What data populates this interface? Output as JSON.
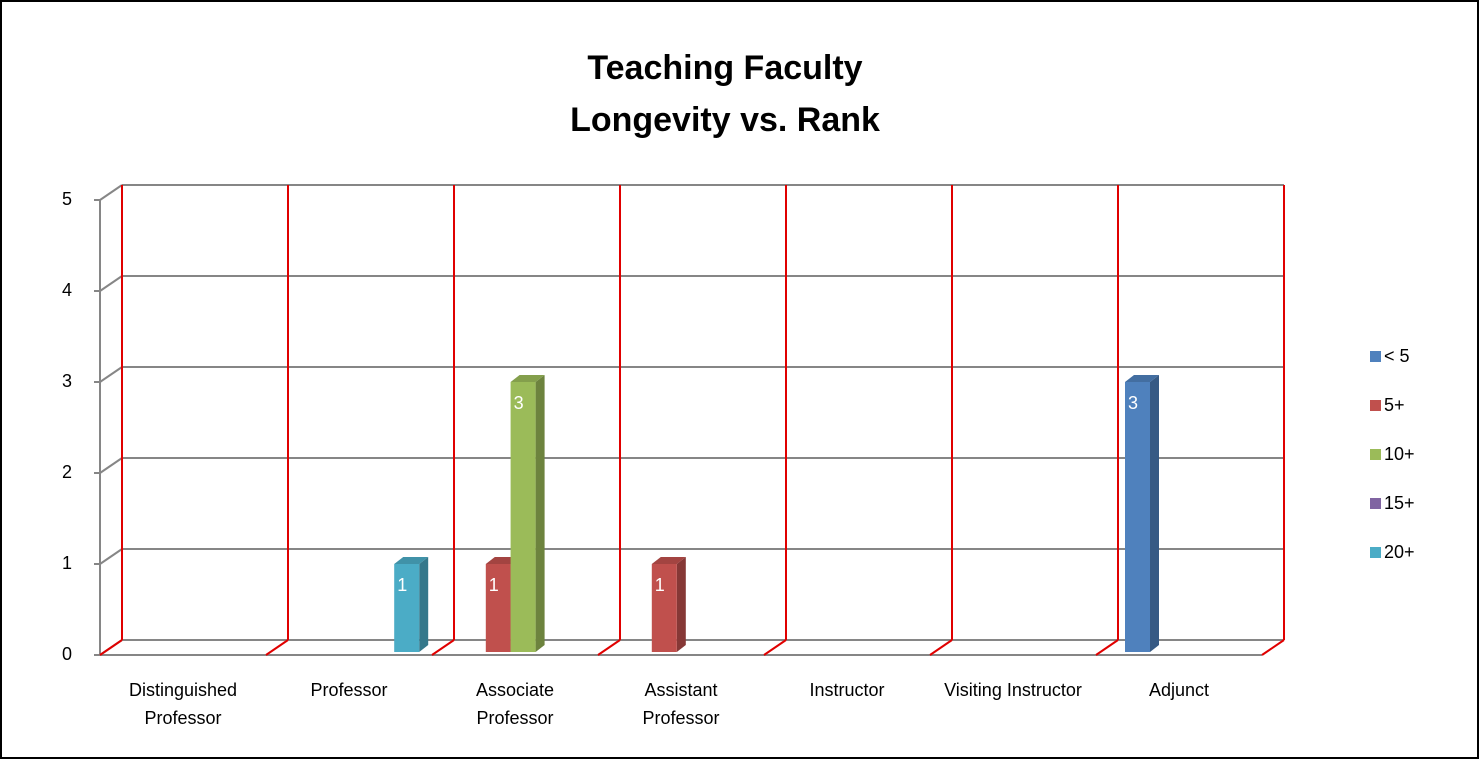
{
  "chart_data": {
    "type": "bar3d",
    "title": [
      "Teaching Faculty",
      "Longevity vs. Rank"
    ],
    "categories": [
      "Distinguished Professor",
      "Professor",
      "Associate Professor",
      "Assistant Professor",
      "Instructor",
      "Visiting Instructor",
      "Adjunct"
    ],
    "series": [
      {
        "name": "< 5",
        "color": "#4f81bd",
        "values": [
          null,
          null,
          null,
          null,
          null,
          null,
          3
        ]
      },
      {
        "name": "5+",
        "color": "#c0504d",
        "values": [
          null,
          null,
          1,
          1,
          null,
          null,
          null
        ]
      },
      {
        "name": "10+",
        "color": "#9bbb59",
        "values": [
          null,
          null,
          3,
          null,
          null,
          null,
          null
        ]
      },
      {
        "name": "15+",
        "color": "#8064a2",
        "values": [
          null,
          null,
          null,
          null,
          null,
          null,
          null
        ]
      },
      {
        "name": "20+",
        "color": "#4bacc6",
        "values": [
          null,
          1,
          null,
          null,
          null,
          null,
          null
        ]
      }
    ],
    "ylim": [
      0,
      5
    ],
    "yticks": [
      0,
      1,
      2,
      3,
      4,
      5
    ],
    "grid": true,
    "legend": "right"
  }
}
